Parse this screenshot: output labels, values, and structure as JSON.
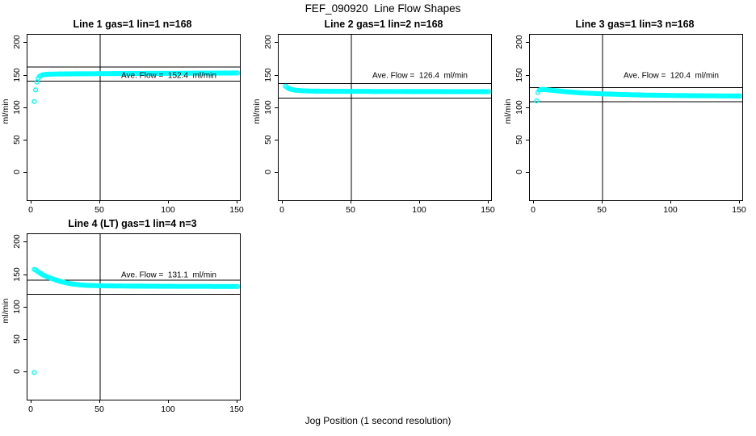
{
  "figure": {
    "title": "FEF_090920  Line Flow Shapes",
    "xlabel": "Jog Position (1 second resolution)",
    "background": "#ffffff",
    "line_color": "#000000",
    "marker_color": "#00ffff"
  },
  "chart_data": {
    "type": "scatter",
    "title": "FEF_090920  Line Flow Shapes",
    "xlabel": "Jog Position (1 second resolution)",
    "ylabel": "ml/min",
    "x_ticks": [
      0,
      50,
      100,
      150
    ],
    "y_ticks": [
      0,
      50,
      100,
      150,
      200
    ],
    "xlim": [
      -3,
      152
    ],
    "ylim": [
      -42,
      213
    ],
    "grid": false,
    "marker": "open-circle",
    "marker_color": "#00ffff",
    "vline_x": 50,
    "plots": [
      {
        "title": "Line 1 gas=1 lin=1 n=168",
        "ave_flow": 152.4,
        "ave_label": "Ave. Flow =  152.4  ml/min",
        "upper_line": 163.4,
        "lower_line": 141.4,
        "series": [
          [
            2,
            110
          ],
          [
            3,
            128
          ],
          [
            4,
            140
          ],
          [
            5,
            146
          ],
          [
            6,
            149
          ],
          [
            8,
            151
          ],
          [
            12,
            152
          ],
          [
            20,
            152.4
          ],
          [
            30,
            152.6
          ],
          [
            50,
            152.9
          ],
          [
            70,
            153.1
          ],
          [
            90,
            153.3
          ],
          [
            110,
            153.5
          ],
          [
            130,
            153.7
          ],
          [
            150,
            153.9
          ]
        ],
        "extra_points": []
      },
      {
        "title": "Line 2 gas=1 lin=2 n=168",
        "ave_flow": 126.4,
        "ave_label": "Ave. Flow =  126.4  ml/min",
        "upper_line": 137.4,
        "lower_line": 115.4,
        "series": [
          [
            2,
            133.5
          ],
          [
            3,
            132
          ],
          [
            4,
            130.5
          ],
          [
            5,
            129.5
          ],
          [
            7,
            128.3
          ],
          [
            10,
            127.3
          ],
          [
            14,
            126.6
          ],
          [
            20,
            126.1
          ],
          [
            30,
            125.8
          ],
          [
            50,
            125.6
          ],
          [
            70,
            125.5
          ],
          [
            90,
            125.4
          ],
          [
            110,
            125.3
          ],
          [
            130,
            125.2
          ],
          [
            150,
            125.2
          ]
        ],
        "extra_points": []
      },
      {
        "title": "Line 3 gas=1 lin=3 n=168",
        "ave_flow": 120.4,
        "ave_label": "Ave. Flow =  120.4  ml/min",
        "upper_line": 131.4,
        "lower_line": 109.4,
        "series": [
          [
            2,
            111
          ],
          [
            3,
            124
          ],
          [
            4,
            127.5
          ],
          [
            5,
            128.5
          ],
          [
            8,
            128.4
          ],
          [
            12,
            127.5
          ],
          [
            18,
            126.2
          ],
          [
            25,
            124.8
          ],
          [
            35,
            123.2
          ],
          [
            50,
            121.8
          ],
          [
            65,
            120.8
          ],
          [
            80,
            120
          ],
          [
            95,
            119.5
          ],
          [
            110,
            119.1
          ],
          [
            125,
            118.8
          ],
          [
            150,
            118.5
          ]
        ],
        "extra_points": []
      },
      {
        "title": "Line 4 (LT) gas=1 lin=4 n=3",
        "ave_flow": 131.1,
        "ave_label": "Ave. Flow =  131.1  ml/min",
        "upper_line": 142.1,
        "lower_line": 120.1,
        "series": [
          [
            2,
            158.5
          ],
          [
            3,
            157.5
          ],
          [
            4,
            156
          ],
          [
            6,
            153
          ],
          [
            8,
            150.5
          ],
          [
            11,
            147.5
          ],
          [
            14,
            145
          ],
          [
            18,
            142
          ],
          [
            22,
            139.5
          ],
          [
            26,
            137.5
          ],
          [
            30,
            136
          ],
          [
            35,
            134.8
          ],
          [
            40,
            134
          ],
          [
            50,
            133.4
          ],
          [
            60,
            133.1
          ],
          [
            70,
            132.9
          ],
          [
            85,
            132.7
          ],
          [
            100,
            132.5
          ],
          [
            120,
            132.4
          ],
          [
            150,
            132.3
          ]
        ],
        "extra_points": [
          [
            2,
            0
          ]
        ]
      }
    ]
  }
}
